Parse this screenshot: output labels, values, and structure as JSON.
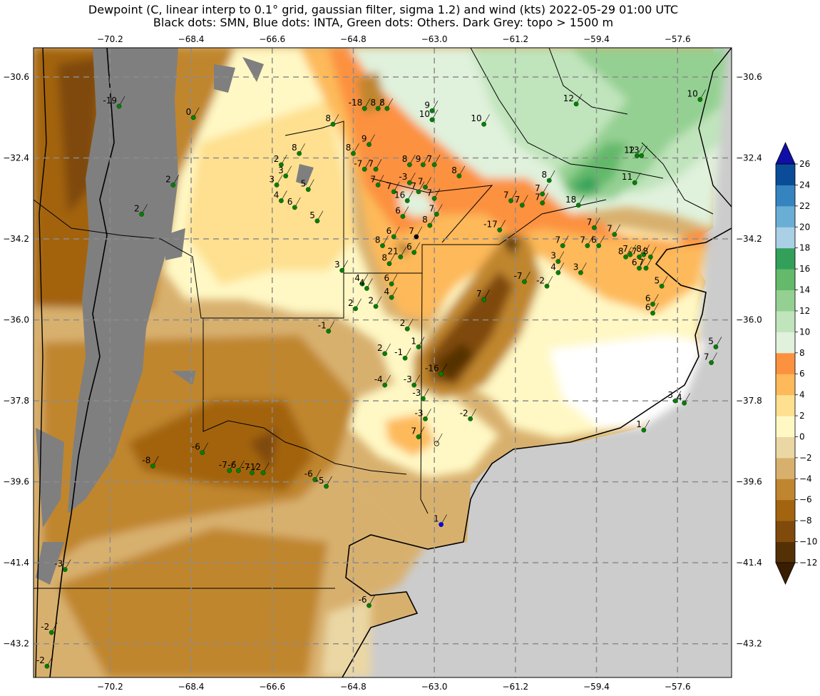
{
  "title": {
    "line1": "Dewpoint (C, linear interp to 0.1° grid, gaussian filter, sigma 1.2) and wind (kts) 2022-05-29 01:00 UTC",
    "line2": "Black dots: SMN, Blue dots: INTA, Green dots: Others. Dark Grey: topo > 1500 m"
  },
  "map": {
    "lon_ticks": [
      -70.2,
      -68.4,
      -66.6,
      -64.8,
      -63.0,
      -61.2,
      -59.4,
      -57.6
    ],
    "lon_tick_labels": [
      "−70.2",
      "−68.4",
      "−66.6",
      "−64.8",
      "−63.0",
      "−61.2",
      "−59.4",
      "−57.6"
    ],
    "lat_ticks": [
      -30.6,
      -32.4,
      -34.2,
      -36.0,
      -37.8,
      -39.6,
      -41.4,
      -43.2
    ],
    "lat_tick_labels": [
      "−30.6",
      "−32.4",
      "−34.2",
      "−36.0",
      "−37.8",
      "−39.6",
      "−41.4",
      "−43.2"
    ],
    "extent": {
      "lon_min": -71.9,
      "lon_max": -56.4,
      "lat_min": -43.95,
      "lat_max": -29.95
    }
  },
  "colorbar": {
    "levels": [
      -12,
      -10,
      -8,
      -6,
      -4,
      -2,
      0,
      2,
      4,
      6,
      8,
      10,
      12,
      14,
      16,
      18,
      20,
      22,
      24,
      26
    ],
    "colors": [
      "#543005",
      "#7f4a0c",
      "#a3640f",
      "#c0862f",
      "#d8b06e",
      "#ead7a4",
      "#fff8c4",
      "#fee090",
      "#fdb95a",
      "#fc9140",
      "#e0f1dc",
      "#c0e4bc",
      "#94d092",
      "#64b96a",
      "#33a05a",
      "#a9d0e5",
      "#6aaed6",
      "#3584c0",
      "#0b4c98"
    ],
    "under_color": "#3a1e02",
    "over_color": "#0f0fa8",
    "tick_labels": [
      "−12",
      "−10",
      "−8",
      "−6",
      "−4",
      "−2",
      "0",
      "2",
      "4",
      "6",
      "8",
      "10",
      "12",
      "14",
      "16",
      "18",
      "20",
      "22",
      "24",
      "26"
    ]
  },
  "stations": [
    {
      "lon": -70.0,
      "lat": -31.25,
      "value": "-19",
      "type": "green"
    },
    {
      "lon": -68.35,
      "lat": -31.5,
      "value": "0",
      "type": "green"
    },
    {
      "lon": -66.0,
      "lat": -32.3,
      "value": "8",
      "type": "green"
    },
    {
      "lon": -66.4,
      "lat": -32.55,
      "value": "2",
      "type": "green"
    },
    {
      "lon": -68.8,
      "lat": -33.0,
      "value": "2",
      "type": "green"
    },
    {
      "lon": -66.3,
      "lat": -32.8,
      "value": "3",
      "type": "green"
    },
    {
      "lon": -66.5,
      "lat": -33.0,
      "value": "3",
      "type": "green"
    },
    {
      "lon": -65.8,
      "lat": -33.1,
      "value": "5",
      "type": "green"
    },
    {
      "lon": -66.4,
      "lat": -33.35,
      "value": "4",
      "type": "green"
    },
    {
      "lon": -66.1,
      "lat": -33.5,
      "value": "6",
      "type": "green"
    },
    {
      "lon": -69.5,
      "lat": -33.65,
      "value": "2",
      "type": "green"
    },
    {
      "lon": -65.6,
      "lat": -33.8,
      "value": "5",
      "type": "green"
    },
    {
      "lon": -65.25,
      "lat": -31.65,
      "value": "8",
      "type": "green"
    },
    {
      "lon": -64.55,
      "lat": -31.3,
      "value": "-18",
      "type": "green"
    },
    {
      "lon": -64.25,
      "lat": -31.3,
      "value": "8",
      "type": "green"
    },
    {
      "lon": -64.05,
      "lat": -31.3,
      "value": "8",
      "type": "green"
    },
    {
      "lon": -63.05,
      "lat": -31.35,
      "value": "9",
      "type": "green"
    },
    {
      "lon": -63.05,
      "lat": -31.55,
      "value": "10",
      "type": "green"
    },
    {
      "lon": -64.45,
      "lat": -32.1,
      "value": "9",
      "type": "green"
    },
    {
      "lon": -64.8,
      "lat": -32.3,
      "value": "8",
      "type": "green"
    },
    {
      "lon": -64.55,
      "lat": -32.65,
      "value": "-7",
      "type": "green"
    },
    {
      "lon": -64.3,
      "lat": -32.65,
      "value": "7",
      "type": "green"
    },
    {
      "lon": -63.55,
      "lat": -32.55,
      "value": "8",
      "type": "green"
    },
    {
      "lon": -63.25,
      "lat": -32.55,
      "value": "9",
      "type": "green"
    },
    {
      "lon": -63.0,
      "lat": -32.55,
      "value": "7",
      "type": "green"
    },
    {
      "lon": -62.45,
      "lat": -32.8,
      "value": "8",
      "type": "green"
    },
    {
      "lon": -64.25,
      "lat": -33.0,
      "value": "7",
      "type": "green"
    },
    {
      "lon": -63.9,
      "lat": -33.15,
      "value": "7",
      "type": "green"
    },
    {
      "lon": -63.55,
      "lat": -32.95,
      "value": "-3",
      "type": "green"
    },
    {
      "lon": -63.35,
      "lat": -33.15,
      "value": "7",
      "type": "green"
    },
    {
      "lon": -63.2,
      "lat": -33.05,
      "value": "7",
      "type": "green"
    },
    {
      "lon": -63.6,
      "lat": -33.35,
      "value": "16",
      "type": "green"
    },
    {
      "lon": -63.0,
      "lat": -33.3,
      "value": "7",
      "type": "green"
    },
    {
      "lon": -63.7,
      "lat": -33.7,
      "value": "6",
      "type": "green"
    },
    {
      "lon": -62.95,
      "lat": -33.65,
      "value": "7",
      "type": "green"
    },
    {
      "lon": -63.1,
      "lat": -33.9,
      "value": "8",
      "type": "green"
    },
    {
      "lon": -63.4,
      "lat": -34.15,
      "value": "7",
      "type": "black"
    },
    {
      "lon": -63.9,
      "lat": -34.15,
      "value": "6",
      "type": "green"
    },
    {
      "lon": -64.15,
      "lat": -34.35,
      "value": "8",
      "type": "green"
    },
    {
      "lon": -63.75,
      "lat": -34.6,
      "value": "21",
      "type": "green"
    },
    {
      "lon": -63.45,
      "lat": -34.5,
      "value": "6",
      "type": "green"
    },
    {
      "lon": -64.0,
      "lat": -34.75,
      "value": "8",
      "type": "green"
    },
    {
      "lon": -65.05,
      "lat": -34.9,
      "value": "3",
      "type": "green"
    },
    {
      "lon": -64.6,
      "lat": -35.2,
      "value": "4",
      "type": "green"
    },
    {
      "lon": -64.5,
      "lat": -35.3,
      "value": "4",
      "type": "green"
    },
    {
      "lon": -63.95,
      "lat": -35.2,
      "value": "6",
      "type": "green"
    },
    {
      "lon": -63.95,
      "lat": -35.5,
      "value": "4",
      "type": "green"
    },
    {
      "lon": -64.3,
      "lat": -35.7,
      "value": "2",
      "type": "green"
    },
    {
      "lon": -64.75,
      "lat": -35.75,
      "value": "2",
      "type": "green"
    },
    {
      "lon": -63.6,
      "lat": -36.2,
      "value": "2",
      "type": "green"
    },
    {
      "lon": -63.35,
      "lat": -36.6,
      "value": "1",
      "type": "green"
    },
    {
      "lon": -63.65,
      "lat": -36.85,
      "value": "-1",
      "type": "green"
    },
    {
      "lon": -64.1,
      "lat": -36.75,
      "value": "2",
      "type": "green"
    },
    {
      "lon": -65.35,
      "lat": -36.25,
      "value": "-1",
      "type": "green"
    },
    {
      "lon": -64.1,
      "lat": -37.45,
      "value": "-4",
      "type": "green"
    },
    {
      "lon": -63.45,
      "lat": -37.45,
      "value": "-3",
      "type": "green"
    },
    {
      "lon": -63.25,
      "lat": -37.75,
      "value": "-3",
      "type": "green"
    },
    {
      "lon": -63.2,
      "lat": -38.2,
      "value": "-3",
      "type": "green"
    },
    {
      "lon": -63.35,
      "lat": -38.6,
      "value": "7",
      "type": "green"
    },
    {
      "lon": -62.85,
      "lat": -37.2,
      "value": "-16",
      "type": "green"
    },
    {
      "lon": -62.2,
      "lat": -38.2,
      "value": "-2",
      "type": "green"
    },
    {
      "lon": -62.95,
      "lat": -38.75,
      "value": "",
      "type": "hollow"
    },
    {
      "lon": -62.85,
      "lat": -40.55,
      "value": "1",
      "type": "blue"
    },
    {
      "lon": -64.45,
      "lat": -42.35,
      "value": "-6",
      "type": "green"
    },
    {
      "lon": -71.2,
      "lat": -41.55,
      "value": "-3",
      "type": "green"
    },
    {
      "lon": -71.5,
      "lat": -42.95,
      "value": "-2",
      "type": "green"
    },
    {
      "lon": -71.6,
      "lat": -43.7,
      "value": "-2",
      "type": "green"
    },
    {
      "lon": -69.25,
      "lat": -39.25,
      "value": "-8",
      "type": "green"
    },
    {
      "lon": -68.15,
      "lat": -38.95,
      "value": "-6",
      "type": "green"
    },
    {
      "lon": -67.55,
      "lat": -39.35,
      "value": "-7",
      "type": "green"
    },
    {
      "lon": -67.35,
      "lat": -39.35,
      "value": "-6",
      "type": "green"
    },
    {
      "lon": -67.05,
      "lat": -39.4,
      "value": "-7",
      "type": "green"
    },
    {
      "lon": -66.8,
      "lat": -39.4,
      "value": "-12",
      "type": "green"
    },
    {
      "lon": -65.65,
      "lat": -39.55,
      "value": "-6",
      "type": "green"
    },
    {
      "lon": -65.4,
      "lat": -39.7,
      "value": "-5",
      "type": "green"
    },
    {
      "lon": -61.55,
      "lat": -34.0,
      "value": "-17",
      "type": "green"
    },
    {
      "lon": -61.0,
      "lat": -35.15,
      "value": "-7",
      "type": "green"
    },
    {
      "lon": -60.5,
      "lat": -35.25,
      "value": "-2",
      "type": "green"
    },
    {
      "lon": -61.3,
      "lat": -33.35,
      "value": "7",
      "type": "green"
    },
    {
      "lon": -61.05,
      "lat": -33.45,
      "value": "7",
      "type": "green"
    },
    {
      "lon": -60.6,
      "lat": -33.2,
      "value": "7",
      "type": "green"
    },
    {
      "lon": -60.45,
      "lat": -32.9,
      "value": "8",
      "type": "green"
    },
    {
      "lon": -60.6,
      "lat": -33.4,
      "value": "7",
      "type": "green"
    },
    {
      "lon": -59.8,
      "lat": -33.45,
      "value": "18",
      "type": "green"
    },
    {
      "lon": -59.45,
      "lat": -33.95,
      "value": "7",
      "type": "green"
    },
    {
      "lon": -60.15,
      "lat": -34.35,
      "value": "7",
      "type": "green"
    },
    {
      "lon": -59.6,
      "lat": -34.35,
      "value": "7",
      "type": "green"
    },
    {
      "lon": -59.35,
      "lat": -34.35,
      "value": "6",
      "type": "green"
    },
    {
      "lon": -60.25,
      "lat": -34.7,
      "value": "3",
      "type": "green"
    },
    {
      "lon": -60.25,
      "lat": -34.95,
      "value": "4",
      "type": "green"
    },
    {
      "lon": -59.75,
      "lat": -34.95,
      "value": "3",
      "type": "green"
    },
    {
      "lon": -59.0,
      "lat": -34.1,
      "value": "7",
      "type": "green"
    },
    {
      "lon": -58.75,
      "lat": -34.6,
      "value": "8",
      "type": "green"
    },
    {
      "lon": -58.65,
      "lat": -34.55,
      "value": "7",
      "type": "green"
    },
    {
      "lon": -58.45,
      "lat": -34.6,
      "value": "-7",
      "type": "green"
    },
    {
      "lon": -58.35,
      "lat": -34.55,
      "value": "8",
      "type": "green"
    },
    {
      "lon": -58.2,
      "lat": -34.6,
      "value": "8",
      "type": "green"
    },
    {
      "lon": -58.45,
      "lat": -34.85,
      "value": "6",
      "type": "green"
    },
    {
      "lon": -58.3,
      "lat": -34.85,
      "value": "7",
      "type": "green"
    },
    {
      "lon": -57.95,
      "lat": -35.25,
      "value": "5",
      "type": "green"
    },
    {
      "lon": -58.15,
      "lat": -35.65,
      "value": "6",
      "type": "green"
    },
    {
      "lon": -58.15,
      "lat": -35.85,
      "value": "6",
      "type": "green"
    },
    {
      "lon": -61.9,
      "lat": -35.55,
      "value": "7",
      "type": "green"
    },
    {
      "lon": -61.9,
      "lat": -31.65,
      "value": "10",
      "type": "green"
    },
    {
      "lon": -59.85,
      "lat": -31.2,
      "value": "12",
      "type": "green"
    },
    {
      "lon": -58.5,
      "lat": -32.35,
      "value": "12",
      "type": "green"
    },
    {
      "lon": -58.4,
      "lat": -32.35,
      "value": "13",
      "type": "green"
    },
    {
      "lon": -58.55,
      "lat": -32.95,
      "value": "11",
      "type": "green"
    },
    {
      "lon": -57.1,
      "lat": -31.1,
      "value": "10",
      "type": "green"
    },
    {
      "lon": -57.65,
      "lat": -37.8,
      "value": "3",
      "type": "green"
    },
    {
      "lon": -57.45,
      "lat": -37.85,
      "value": "4",
      "type": "green"
    },
    {
      "lon": -58.35,
      "lat": -38.45,
      "value": "1",
      "type": "green"
    },
    {
      "lon": -56.75,
      "lat": -36.6,
      "value": "5",
      "type": "green"
    },
    {
      "lon": -56.85,
      "lat": -36.95,
      "value": "7",
      "type": "green"
    }
  ]
}
